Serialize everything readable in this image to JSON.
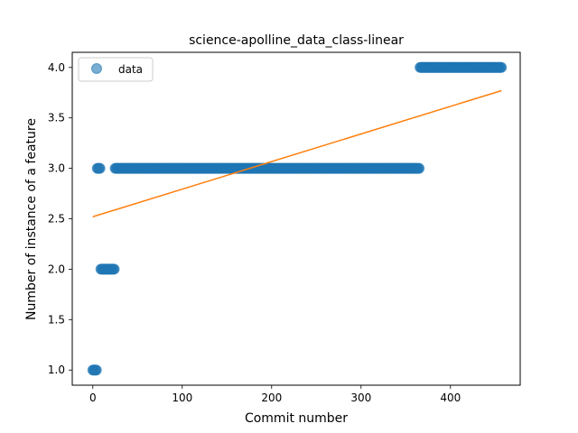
{
  "chart_data": {
    "type": "scatter",
    "title": "science-apolline_data_class-linear",
    "xlabel": "Commit number",
    "ylabel": "Number of instance of a feature",
    "xlim": [
      -23,
      478
    ],
    "ylim": [
      0.85,
      4.15
    ],
    "xticks": [
      0,
      100,
      200,
      300,
      400
    ],
    "yticks": [
      1.0,
      1.5,
      2.0,
      2.5,
      3.0,
      3.5,
      4.0
    ],
    "grid": false,
    "legend": {
      "position": "top-left",
      "entries": [
        "data"
      ]
    },
    "colors": {
      "data": "#1f77b4",
      "fit": "#ff7f0e"
    },
    "series": [
      {
        "name": "data",
        "kind": "scatter",
        "runs": [
          {
            "x_start": 0,
            "x_end": 4,
            "y": 1.0
          },
          {
            "x_start": 5,
            "x_end": 8,
            "y": 3.0
          },
          {
            "x_start": 9,
            "x_end": 24,
            "y": 2.0
          },
          {
            "x_start": 25,
            "x_end": 365,
            "y": 3.0
          },
          {
            "x_start": 366,
            "x_end": 457,
            "y": 4.0
          }
        ]
      },
      {
        "kind": "line",
        "x": [
          0,
          457
        ],
        "y": [
          2.52,
          3.77
        ]
      }
    ]
  }
}
